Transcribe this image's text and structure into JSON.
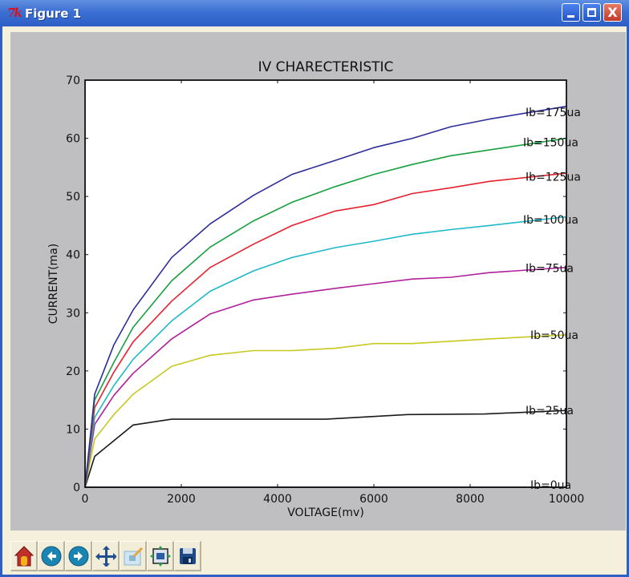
{
  "window": {
    "title": "Figure 1",
    "logo_text": "7k",
    "controls": {
      "minimize": "minimize",
      "maximize": "maximize",
      "close": "X"
    }
  },
  "toolbar": {
    "buttons": [
      {
        "id": "home",
        "icon": "home-icon",
        "tooltip": "Home"
      },
      {
        "id": "back",
        "icon": "arrow-left-icon",
        "tooltip": "Back"
      },
      {
        "id": "forward",
        "icon": "arrow-right-icon",
        "tooltip": "Forward"
      },
      {
        "id": "pan",
        "icon": "move-icon",
        "tooltip": "Pan"
      },
      {
        "id": "zoom",
        "icon": "zoom-rect-icon",
        "tooltip": "Zoom"
      },
      {
        "id": "subplots",
        "icon": "subplots-icon",
        "tooltip": "Configure subplots"
      },
      {
        "id": "save",
        "icon": "floppy-icon",
        "tooltip": "Save"
      }
    ]
  },
  "chart_data": {
    "type": "line",
    "title": "IV CHARECTERISTIC",
    "xlabel": "VOLTAGE(mv)",
    "ylabel": "CURRENT(ma)",
    "xlim": [
      0,
      10000
    ],
    "ylim": [
      0,
      70
    ],
    "xticks": [
      0,
      2000,
      4000,
      6000,
      8000,
      10000
    ],
    "yticks": [
      0,
      10,
      20,
      30,
      40,
      50,
      60,
      70
    ],
    "grid": false,
    "legend": "inline labels at right end of curves",
    "series": [
      {
        "name": "Ib=0ua",
        "color": "#000080",
        "x": [
          0,
          10000
        ],
        "y": [
          0,
          0
        ]
      },
      {
        "name": "Ib=25ua",
        "color": "#1a1a1a",
        "x": [
          0,
          200,
          600,
          1000,
          1800,
          2600,
          3500,
          5000,
          6700,
          8300,
          10000
        ],
        "y": [
          0,
          5.3,
          8,
          10.7,
          11.7,
          11.7,
          11.7,
          11.7,
          12.5,
          12.6,
          13.2
        ]
      },
      {
        "name": "Ib=50ua",
        "color": "#c8c81e",
        "x": [
          0,
          200,
          600,
          1000,
          1800,
          2600,
          3500,
          4300,
          5200,
          6000,
          6800,
          7600,
          8400,
          10000
        ],
        "y": [
          0,
          8.3,
          12.5,
          16,
          20.8,
          22.7,
          23.5,
          23.5,
          23.9,
          24.7,
          24.7,
          25.1,
          25.5,
          26.2
        ]
      },
      {
        "name": "Ib=75ua",
        "color": "#b0209b",
        "x": [
          0,
          200,
          600,
          1000,
          1800,
          2600,
          3500,
          4300,
          5200,
          6000,
          6800,
          7600,
          8400,
          10000
        ],
        "y": [
          0,
          10.8,
          15.8,
          19.6,
          25.5,
          29.8,
          32.2,
          33.2,
          34.2,
          35,
          35.8,
          36.1,
          36.9,
          37.8
        ]
      },
      {
        "name": "Ib=100ua",
        "color": "#1fb8c8",
        "x": [
          0,
          200,
          600,
          1000,
          1800,
          2600,
          3500,
          4300,
          5200,
          6000,
          6800,
          7600,
          8400,
          10000
        ],
        "y": [
          0,
          12,
          17.5,
          22,
          28.6,
          33.7,
          37.2,
          39.5,
          41.2,
          42.3,
          43.5,
          44.3,
          45,
          46.5
        ]
      },
      {
        "name": "Ib=125ua",
        "color": "#e8202e",
        "x": [
          0,
          200,
          600,
          1000,
          1800,
          2600,
          3500,
          4300,
          5200,
          6000,
          6800,
          7600,
          8400,
          10000
        ],
        "y": [
          0,
          13.7,
          19.8,
          25,
          32,
          37.8,
          41.8,
          45,
          47.5,
          48.6,
          50.5,
          51.5,
          52.6,
          54
        ]
      },
      {
        "name": "Ib=150ua",
        "color": "#18a040",
        "x": [
          0,
          200,
          600,
          1000,
          1800,
          2600,
          3500,
          4300,
          5200,
          6000,
          6800,
          7600,
          8400,
          10000
        ],
        "y": [
          0,
          15,
          21.5,
          27.5,
          35.5,
          41.3,
          45.8,
          49,
          51.7,
          53.8,
          55.5,
          57,
          58,
          60
        ]
      },
      {
        "name": "Ib=175ua",
        "color": "#2d2d9a",
        "x": [
          0,
          200,
          600,
          1000,
          1800,
          2600,
          3500,
          4300,
          5200,
          6000,
          6800,
          7600,
          8400,
          10000
        ],
        "y": [
          0,
          16,
          24.5,
          30.5,
          39.5,
          45.3,
          50.2,
          53.8,
          56.2,
          58.4,
          60,
          62,
          63.3,
          65.5
        ]
      }
    ],
    "labels": [
      {
        "text": "Ib=175ua",
        "x": 9150,
        "y": 64.5
      },
      {
        "text": "Ib=150ua",
        "x": 9100,
        "y": 59.3
      },
      {
        "text": "Ib=125ua",
        "x": 9150,
        "y": 53.4
      },
      {
        "text": "Ib=100ua",
        "x": 9100,
        "y": 46
      },
      {
        "text": "Ib=75ua",
        "x": 9150,
        "y": 37.7
      },
      {
        "text": "Ib=50ua",
        "x": 9250,
        "y": 26.2
      },
      {
        "text": "Ib=25ua",
        "x": 9150,
        "y": 13.2
      },
      {
        "text": "Ib=0ua",
        "x": 9250,
        "y": 0.4
      }
    ]
  }
}
